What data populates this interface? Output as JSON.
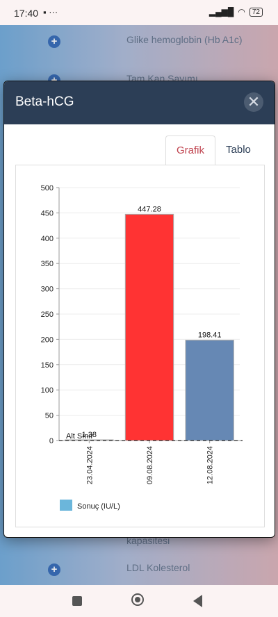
{
  "status_bar": {
    "time": "17:40",
    "icons_left": "▪ ···",
    "battery": "72"
  },
  "background_list": {
    "items": [
      {
        "label": "Glike hemoglobin (Hb A1c)"
      },
      {
        "label": "Tam Kan Sayımı"
      },
      {
        "label": "kapasitesi"
      },
      {
        "label": "LDL Kolesterol"
      }
    ]
  },
  "modal": {
    "title": "Beta-hCG",
    "tabs": [
      {
        "label": "Grafik",
        "active": true
      },
      {
        "label": "Tablo",
        "active": false
      }
    ]
  },
  "chart_data": {
    "type": "bar",
    "categories": [
      "23.04.2024",
      "09.08.2024",
      "12.08.2024"
    ],
    "values": [
      1.38,
      447.28,
      198.41
    ],
    "data_labels": [
      "1.38",
      "447.28",
      "198.41"
    ],
    "bar_colors": [
      "#6fa7c9",
      "#ff3333",
      "#6688b4"
    ],
    "ylim": [
      0,
      500
    ],
    "yticks": [
      0,
      50,
      100,
      150,
      200,
      250,
      300,
      350,
      400,
      450,
      500
    ],
    "reference_line": {
      "label": "Alt Sınır",
      "value": 0
    },
    "legend": {
      "label": "Sonuç (IU/L)",
      "color": "#6bb6db",
      "placement": "bottom-left"
    },
    "grid": true
  }
}
